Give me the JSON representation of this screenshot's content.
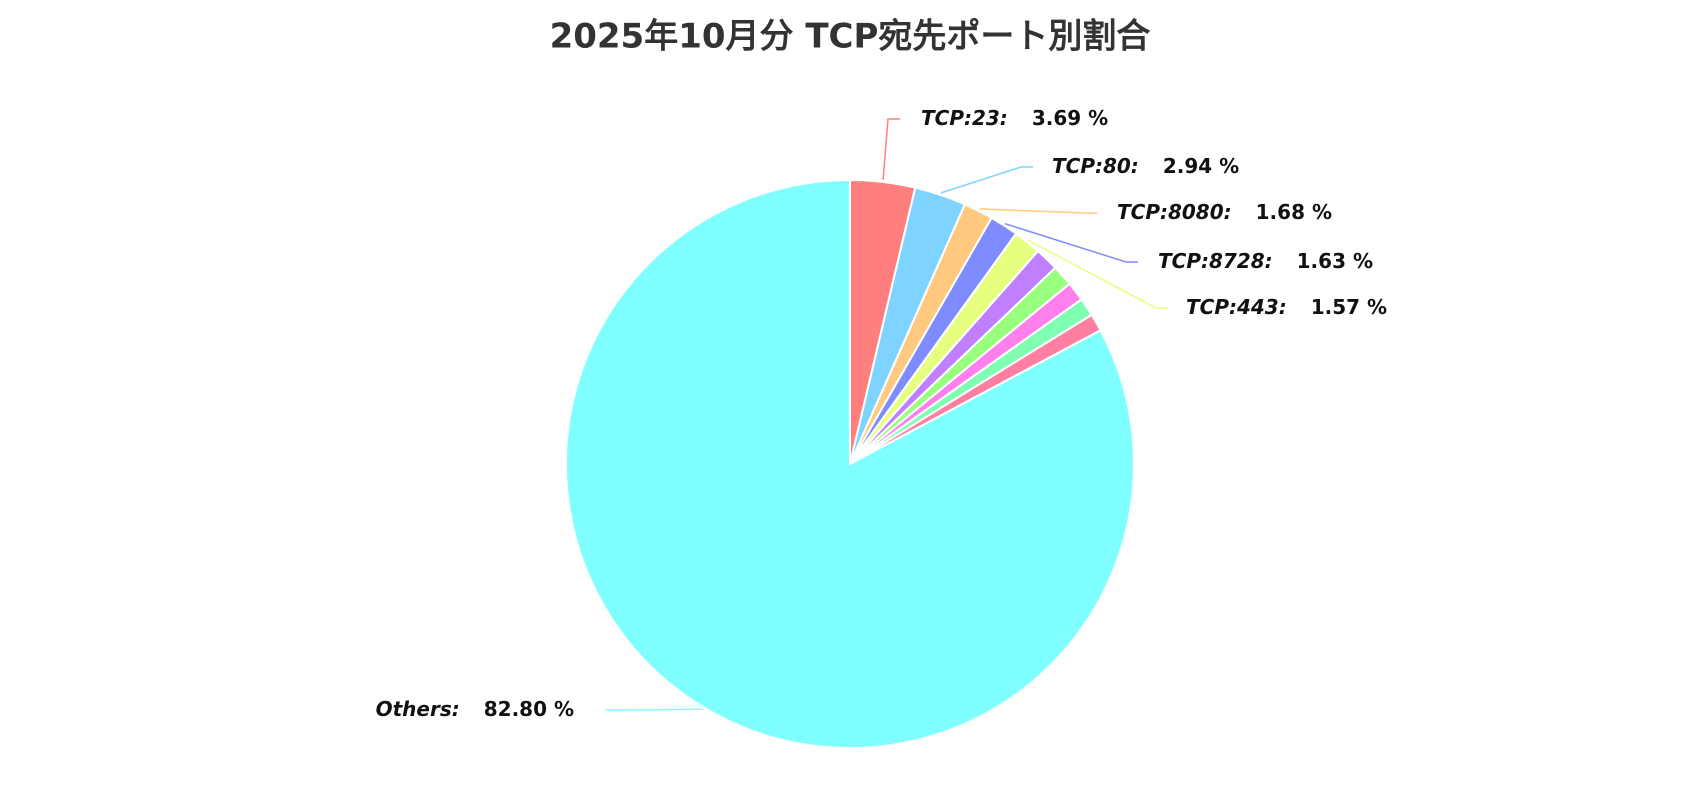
{
  "chart_data": {
    "type": "pie",
    "title": "2025年10月分 TCP宛先ポート別割合",
    "categories": [
      "TCP:23:",
      "TCP:80:",
      "TCP:8080:",
      "TCP:8728:",
      "TCP:443:",
      null,
      null,
      null,
      null,
      null,
      "Others:"
    ],
    "values": [
      3.69,
      2.94,
      1.68,
      1.63,
      1.57,
      1.35,
      1.2,
      1.1,
      1.04,
      1.0,
      82.8
    ],
    "value_labels": [
      "3.69 %",
      "2.94 %",
      "1.68 %",
      "1.63 %",
      "1.57 %",
      null,
      null,
      null,
      null,
      null,
      "82.80 %"
    ],
    "colors": [
      "#ff7f7f",
      "#7fd4ff",
      "#ffc97f",
      "#7f8cff",
      "#e6ff7f",
      "#bf7fff",
      "#99ff7f",
      "#ff7fed",
      "#7fffb2",
      "#ff7fa3",
      "#7fffff"
    ]
  }
}
